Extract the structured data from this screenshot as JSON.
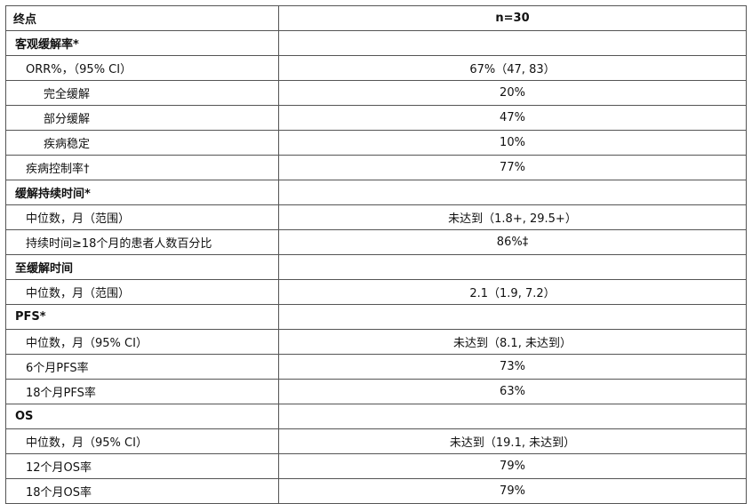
{
  "header": {
    "label": "终点",
    "value": "n=30"
  },
  "rows": [
    {
      "type": "section",
      "label": "客观缓解率*",
      "value": ""
    },
    {
      "type": "row",
      "indent": 1,
      "label": "ORR%，（95% CI）",
      "value": "67%（47, 83）"
    },
    {
      "type": "row",
      "indent": 2,
      "label": "完全缓解",
      "value": "20%"
    },
    {
      "type": "row",
      "indent": 2,
      "label": "部分缓解",
      "value": "47%"
    },
    {
      "type": "row",
      "indent": 2,
      "label": "疾病稳定",
      "value": "10%"
    },
    {
      "type": "row",
      "indent": 1,
      "label": "疾病控制率†",
      "value": "77%"
    },
    {
      "type": "section",
      "label": "缓解持续时间*",
      "value": ""
    },
    {
      "type": "row",
      "indent": 1,
      "label": "中位数，月（范围）",
      "value": "未达到（1.8+, 29.5+）"
    },
    {
      "type": "row",
      "indent": 1,
      "label": "持续时间≥18个月的患者人数百分比",
      "value": "86%‡"
    },
    {
      "type": "section",
      "label": "至缓解时间",
      "value": ""
    },
    {
      "type": "row",
      "indent": 1,
      "label": "中位数，月（范围）",
      "value": "2.1（1.9, 7.2）"
    },
    {
      "type": "section",
      "label": "PFS*",
      "value": ""
    },
    {
      "type": "row",
      "indent": 1,
      "label": "中位数，月（95% CI）",
      "value": "未达到（8.1, 未达到）"
    },
    {
      "type": "row",
      "indent": 1,
      "label": "6个月PFS率",
      "value": "73%"
    },
    {
      "type": "row",
      "indent": 1,
      "label": "18个月PFS率",
      "value": "63%"
    },
    {
      "type": "section",
      "label": "OS",
      "value": ""
    },
    {
      "type": "row",
      "indent": 1,
      "label": "中位数，月（95% CI）",
      "value": "未达到（19.1, 未达到）"
    },
    {
      "type": "row",
      "indent": 1,
      "label": "12个月OS率",
      "value": "79%"
    },
    {
      "type": "row",
      "indent": 1,
      "label": "18个月OS率",
      "value": "79%"
    }
  ]
}
